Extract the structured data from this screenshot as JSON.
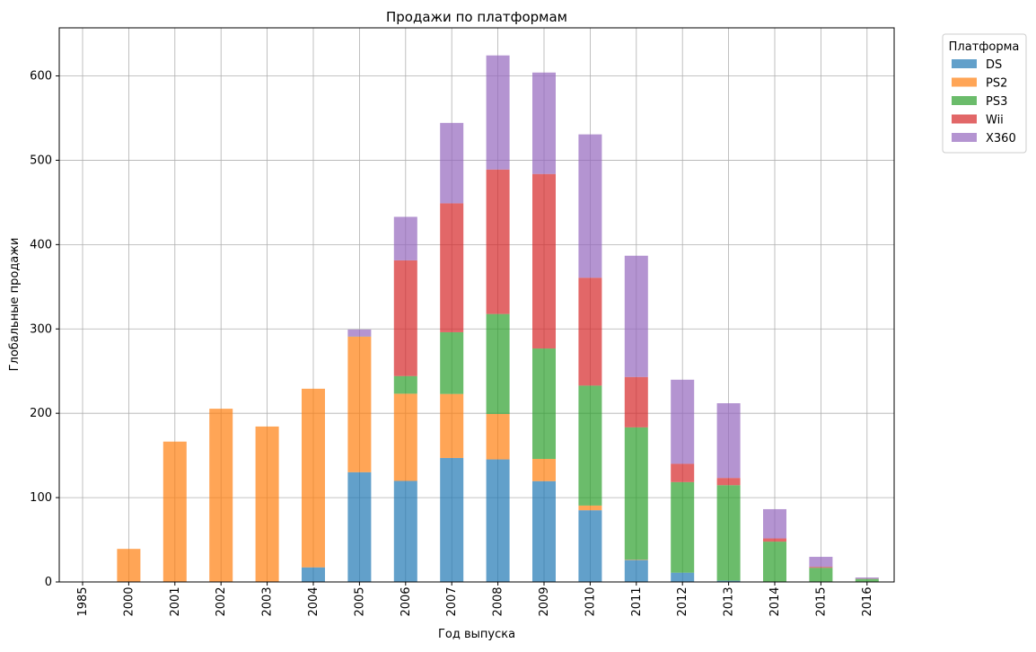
{
  "chart_data": {
    "type": "bar",
    "stacked": true,
    "title": "Продажи по платформам",
    "xlabel": "Год выпуска",
    "ylabel": "Глобальные продажи",
    "ylim": [
      0,
      657
    ],
    "yticks": [
      0,
      100,
      200,
      300,
      400,
      500,
      600
    ],
    "grid": true,
    "legend": {
      "title": "Платформа",
      "placement": "outside top-right"
    },
    "categories": [
      "1985",
      "2000",
      "2001",
      "2002",
      "2003",
      "2004",
      "2005",
      "2006",
      "2007",
      "2008",
      "2009",
      "2010",
      "2011",
      "2012",
      "2013",
      "2014",
      "2015",
      "2016"
    ],
    "series": [
      {
        "name": "DS",
        "color": "#1f77b4",
        "values": [
          0.02,
          0,
          0,
          0,
          0,
          17.3,
          130.1,
          119.8,
          147.0,
          145.3,
          119.5,
          85.0,
          26.0,
          11.0,
          1.5,
          0,
          0,
          0
        ]
      },
      {
        "name": "PS2",
        "color": "#ff7f0e",
        "values": [
          0,
          39.2,
          166.4,
          205.4,
          184.3,
          211.8,
          160.7,
          103.4,
          75.9,
          53.9,
          26.4,
          5.6,
          0.5,
          0,
          0,
          0,
          0,
          0
        ]
      },
      {
        "name": "PS3",
        "color": "#2ca02c",
        "values": [
          0,
          0,
          0,
          0,
          0,
          0,
          0.2,
          20.9,
          73.2,
          118.5,
          130.9,
          142.2,
          156.8,
          107.4,
          113.2,
          47.8,
          16.8,
          3.6
        ]
      },
      {
        "name": "Wii",
        "color": "#d62728",
        "values": [
          0,
          0,
          0,
          0,
          0,
          0,
          0,
          137.2,
          152.8,
          171.3,
          206.9,
          127.9,
          59.7,
          21.7,
          8.6,
          3.8,
          1.1,
          0.2
        ]
      },
      {
        "name": "X360",
        "color": "#9467bd",
        "values": [
          0,
          0,
          0,
          0,
          0,
          0,
          8.3,
          51.6,
          95.4,
          135.3,
          120.3,
          170.0,
          143.8,
          99.7,
          88.6,
          34.7,
          11.9,
          1.5
        ]
      }
    ]
  }
}
